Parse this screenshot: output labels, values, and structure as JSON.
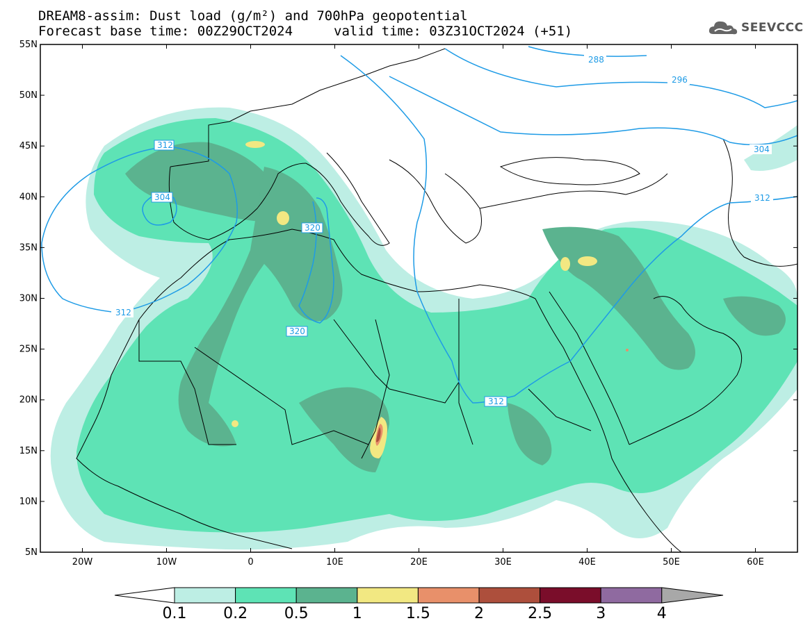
{
  "header": {
    "title_line1": "DREAM8-assim: Dust load (g/m²) and 700hPa geopotential",
    "title_line2_left": "Forecast base time: 00Z29OCT2024",
    "title_line2_right": "valid time: 03Z31OCT2024 (+51)",
    "logo_text": "SEEVCCC"
  },
  "axes": {
    "lat_labels": [
      "55N",
      "50N",
      "45N",
      "40N",
      "35N",
      "30N",
      "25N",
      "20N",
      "15N",
      "10N",
      "5N"
    ],
    "lat_values": [
      55,
      50,
      45,
      40,
      35,
      30,
      25,
      20,
      15,
      10,
      5
    ],
    "lon_labels": [
      "20W",
      "10W",
      "0",
      "10E",
      "20E",
      "30E",
      "40E",
      "50E",
      "60E"
    ],
    "lon_values": [
      -20,
      -10,
      0,
      10,
      20,
      30,
      40,
      50,
      60
    ],
    "lon_range": [
      -25,
      65
    ],
    "lat_range": [
      5,
      55
    ]
  },
  "contour_labels": [
    "288",
    "296",
    "304",
    "312",
    "304",
    "320",
    "320",
    "312",
    "312",
    "312"
  ],
  "colorbar": {
    "labels": [
      "0.1",
      "0.2",
      "0.5",
      "1",
      "1.5",
      "2",
      "2.5",
      "3",
      "4"
    ],
    "colors": [
      "#bdeee4",
      "#5ee3b5",
      "#5bb38f",
      "#f2e882",
      "#e8906a",
      "#ad4f3c",
      "#7a0d2a",
      "#8f6aa0",
      "#a8a8a8"
    ],
    "low_end_color": "#ffffff",
    "high_end_color": "#a8a8a8"
  },
  "colors": {
    "contour": "#1e9be6",
    "coast": "#000000",
    "dust_01": "#bdeee4",
    "dust_02": "#5ee3b5",
    "dust_05": "#5bb38f",
    "dust_1": "#f2e882",
    "dust_15": "#e8906a",
    "dust_2": "#ad4f3c"
  }
}
